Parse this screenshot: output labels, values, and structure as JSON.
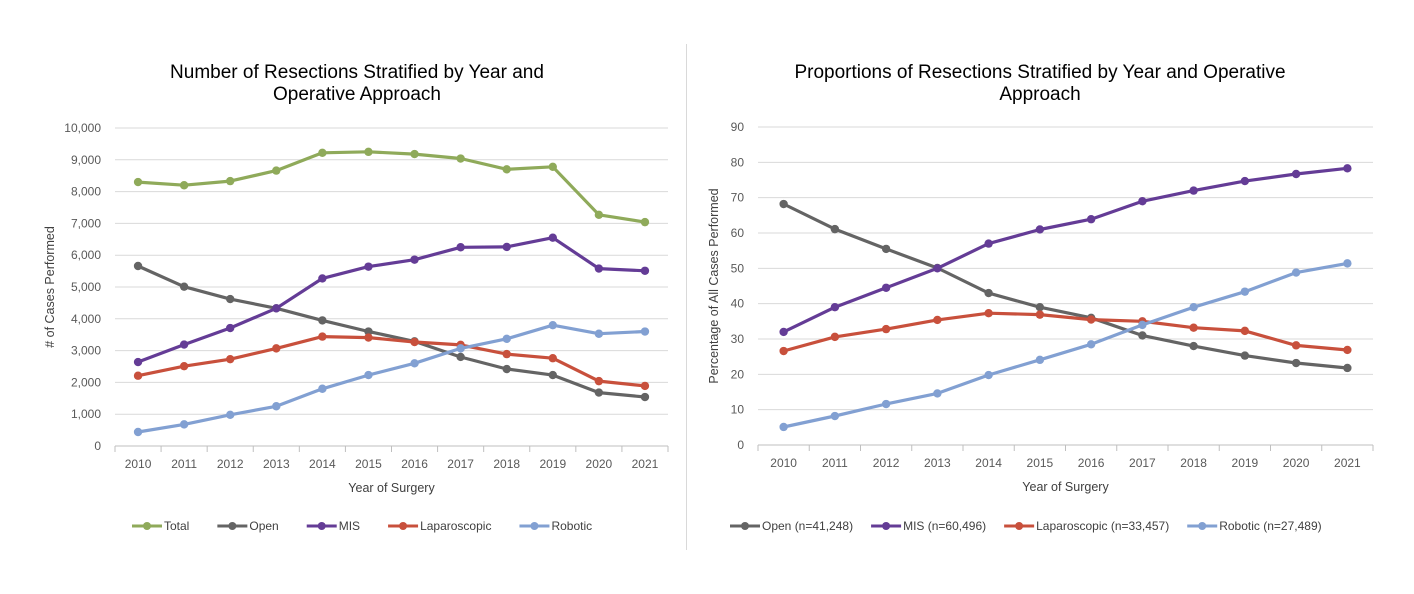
{
  "chart_data": [
    {
      "type": "line",
      "title_lines": [
        "Number of Resections Stratified by Year and",
        "Operative Approach"
      ],
      "xlabel": "Year of Surgery",
      "ylabel": "# of Cases Performed",
      "categories": [
        "2010",
        "2011",
        "2012",
        "2013",
        "2014",
        "2015",
        "2016",
        "2017",
        "2018",
        "2019",
        "2020",
        "2021"
      ],
      "ylim": [
        0,
        10000
      ],
      "yticks": [
        "0",
        "1,000",
        "2,000",
        "3,000",
        "4,000",
        "5,000",
        "6,000",
        "7,000",
        "8,000",
        "9,000",
        "10,000"
      ],
      "grid": true,
      "legend_position": "bottom",
      "series": [
        {
          "name": "Total",
          "color": "#8faa5a",
          "values": [
            8300,
            8200,
            8330,
            8660,
            9220,
            9250,
            9180,
            9040,
            8700,
            8780,
            7270,
            7040
          ]
        },
        {
          "name": "Open",
          "color": "#646464",
          "values": [
            5660,
            5010,
            4620,
            4330,
            3950,
            3600,
            3290,
            2800,
            2420,
            2230,
            1680,
            1540
          ]
        },
        {
          "name": "MIS",
          "color": "#643c96",
          "values": [
            2640,
            3190,
            3710,
            4330,
            5270,
            5640,
            5860,
            6250,
            6260,
            6550,
            5580,
            5510
          ]
        },
        {
          "name": "Laparoscopic",
          "color": "#c8503c",
          "values": [
            2210,
            2510,
            2730,
            3070,
            3440,
            3410,
            3270,
            3180,
            2890,
            2760,
            2040,
            1890
          ]
        },
        {
          "name": "Robotic",
          "color": "#82a0d2",
          "values": [
            440,
            680,
            980,
            1250,
            1800,
            2230,
            2600,
            3070,
            3370,
            3800,
            3530,
            3600
          ]
        }
      ]
    },
    {
      "type": "line",
      "title_lines": [
        "Proportions of Resections Stratified by Year and Operative",
        "Approach"
      ],
      "xlabel": "Year of Surgery",
      "ylabel": "Percentage of All Cases Performed",
      "categories": [
        "2010",
        "2011",
        "2012",
        "2013",
        "2014",
        "2015",
        "2016",
        "2017",
        "2018",
        "2019",
        "2020",
        "2021"
      ],
      "ylim": [
        0,
        90
      ],
      "yticks": [
        "0",
        "10",
        "20",
        "30",
        "40",
        "50",
        "60",
        "70",
        "80",
        "90"
      ],
      "grid": true,
      "legend_position": "bottom",
      "series": [
        {
          "name": "Open (n=41,248)",
          "color": "#646464",
          "values": [
            68.2,
            61.1,
            55.5,
            50.1,
            43.0,
            39.0,
            36.0,
            31.0,
            28.0,
            25.3,
            23.2,
            21.8
          ]
        },
        {
          "name": "MIS (n=60,496)",
          "color": "#643c96",
          "values": [
            32.0,
            39.0,
            44.5,
            50.0,
            57.0,
            61.0,
            63.9,
            69.0,
            72.0,
            74.7,
            76.7,
            78.3
          ]
        },
        {
          "name": "Laparoscopic (n=33,457)",
          "color": "#c8503c",
          "values": [
            26.6,
            30.6,
            32.8,
            35.4,
            37.3,
            36.9,
            35.5,
            35.0,
            33.2,
            32.3,
            28.2,
            26.9
          ]
        },
        {
          "name": "Robotic (n=27,489)",
          "color": "#82a0d2",
          "values": [
            5.1,
            8.2,
            11.6,
            14.6,
            19.8,
            24.1,
            28.5,
            34.0,
            39.0,
            43.4,
            48.8,
            51.4
          ]
        }
      ]
    }
  ]
}
